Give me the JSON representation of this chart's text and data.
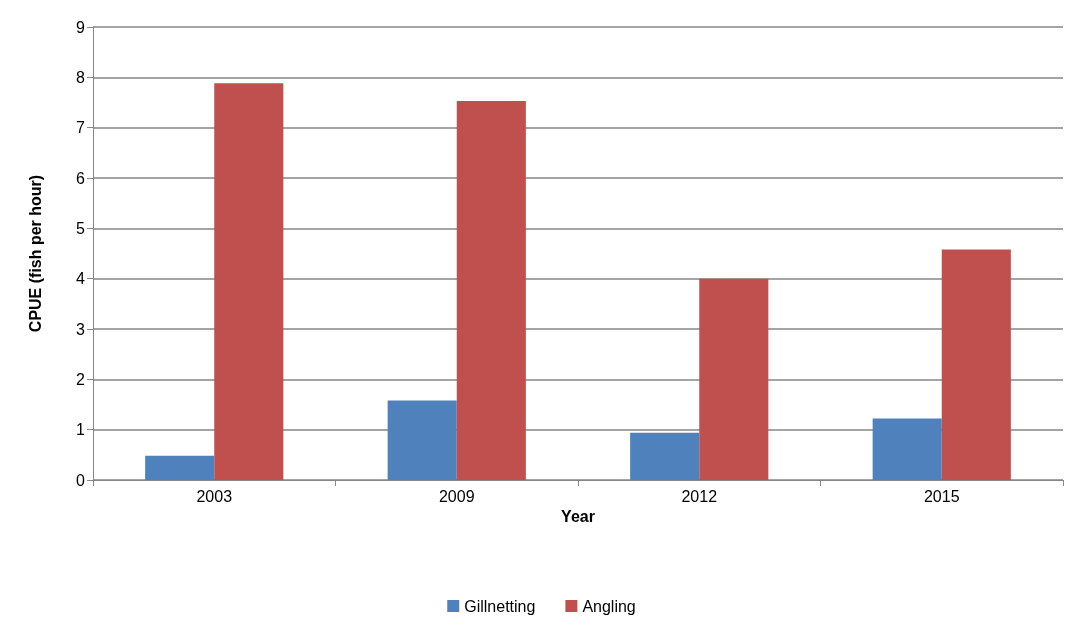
{
  "chart_data": {
    "type": "bar",
    "xlabel": "Year",
    "ylabel": "CPUE (fish per hour)",
    "categories": [
      "2003",
      "2009",
      "2012",
      "2015"
    ],
    "series": [
      {
        "name": "Gillnetting",
        "color": "#4f81bd",
        "values": [
          0.48,
          1.58,
          0.94,
          1.22
        ]
      },
      {
        "name": "Angling",
        "color": "#c0504d",
        "values": [
          7.88,
          7.53,
          4.0,
          4.58
        ]
      }
    ],
    "ylim": [
      0,
      9
    ],
    "yticks": [
      0,
      1,
      2,
      3,
      4,
      5,
      6,
      7,
      8,
      9
    ],
    "grid": "y",
    "legend": "bottom"
  }
}
